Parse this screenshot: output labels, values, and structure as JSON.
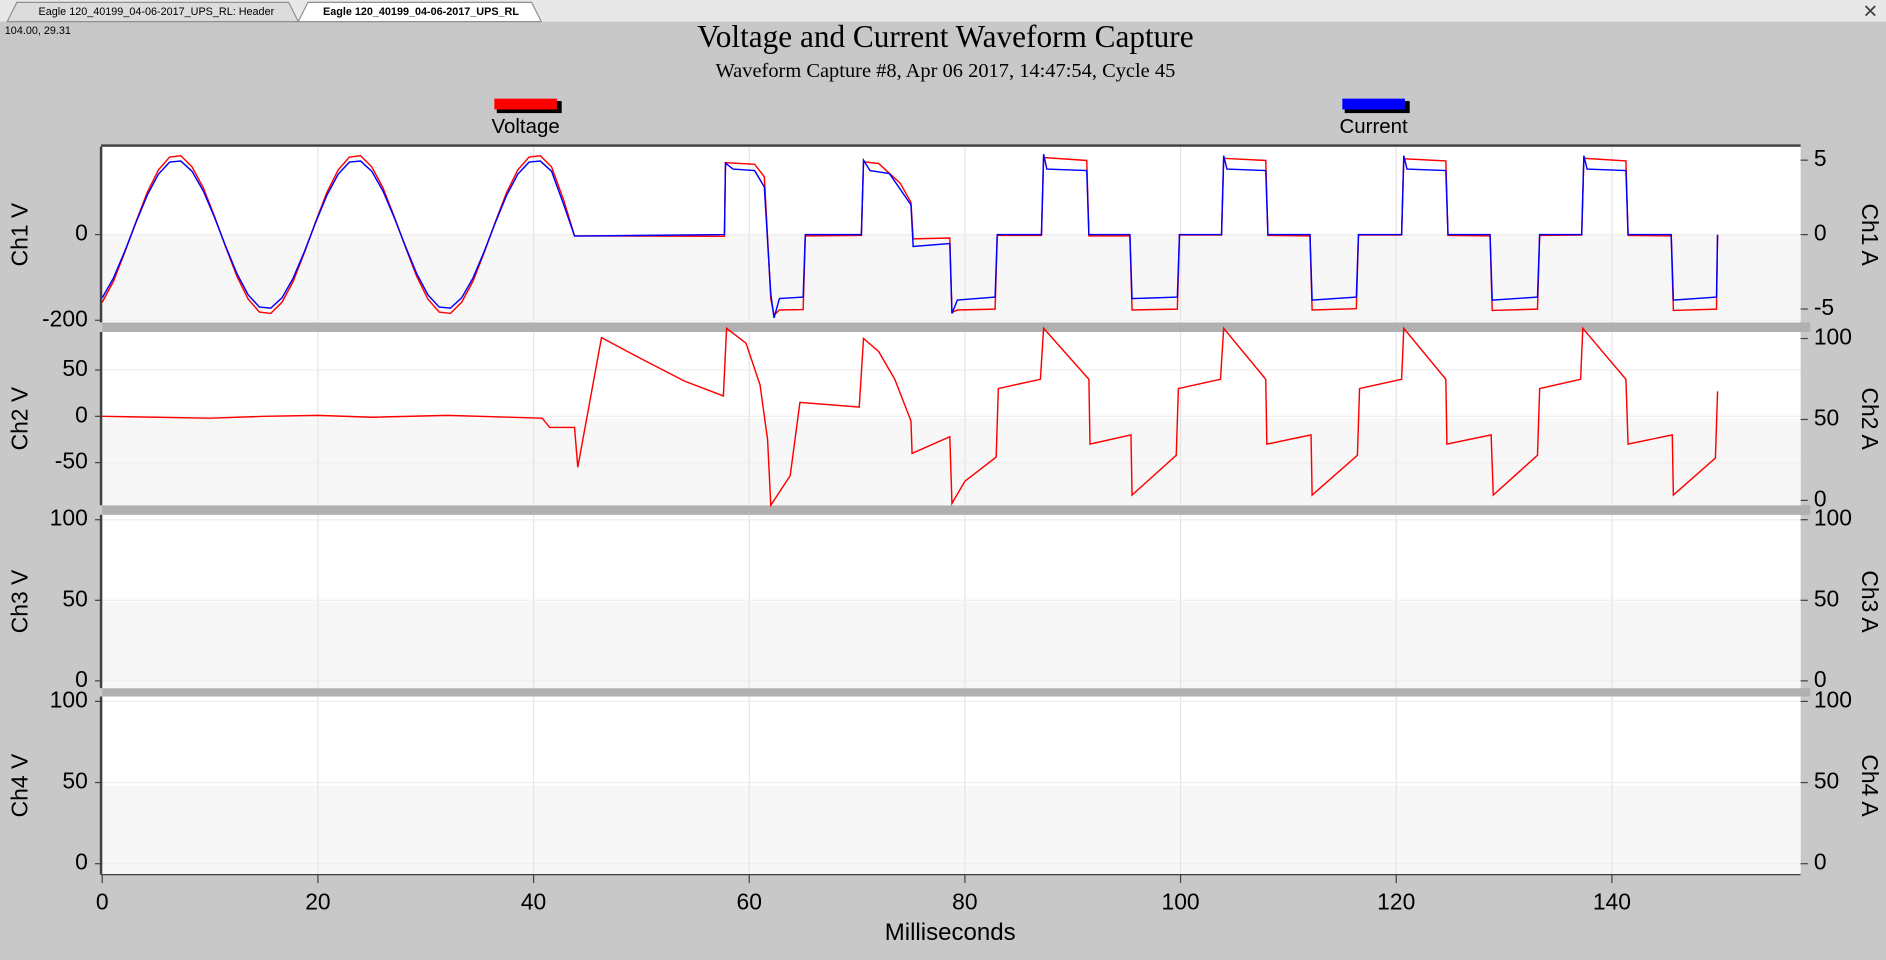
{
  "tabs": [
    "Eagle 120_40199_04-06-2017_UPS_RL: Header",
    "Eagle 120_40199_04-06-2017_UPS_RL"
  ],
  "cursor_readout": "104.00, 29.31",
  "chart_data": [
    {
      "type": "line",
      "title": "Voltage and Current Waveform Capture",
      "subtitle": "Waveform Capture #8, Apr 06 2017, 14:47:54,  Cycle 45",
      "ylabel": "Ch1 V",
      "y2label": "Ch1 A",
      "xlim": [
        0,
        157.5
      ],
      "ylim": [
        -205,
        205
      ],
      "yticks": [
        -200,
        0
      ],
      "y2lim": [
        -5.9,
        5.9
      ],
      "y2ticks": [
        -5,
        0,
        5
      ],
      "grid": true,
      "series": [
        {
          "name": "Voltage",
          "color": "#ff0000",
          "x": [
            0,
            1.04,
            2.08,
            3.13,
            4.17,
            5.21,
            6.25,
            7.29,
            8.33,
            9.38,
            10.42,
            11.46,
            12.5,
            13.54,
            14.58,
            15.63,
            16.67,
            17.71,
            18.75,
            19.79,
            20.83,
            21.88,
            22.92,
            23.96,
            25,
            26.04,
            27.08,
            28.13,
            29.17,
            30.21,
            31.25,
            32.29,
            33.33,
            34.38,
            35.42,
            36.46,
            37.5,
            38.54,
            39.58,
            40.63,
            41.67,
            42.8,
            43.8,
            57.7,
            57.8,
            60.5,
            61.4,
            62.0,
            62.3,
            62.8,
            65.0,
            65.2,
            70.4,
            70.6,
            72,
            74,
            75,
            75.2,
            78.6,
            78.8,
            79.3,
            82.8,
            83.0,
            87.1,
            87.3,
            91.3,
            91.5,
            95.3,
            95.5,
            99.7,
            99.9,
            103.8,
            104.0,
            107.9,
            108.1,
            112.0,
            112.2,
            116.3,
            116.5,
            120.5,
            120.7,
            124.6,
            124.8,
            128.7,
            128.9,
            133.1,
            133.3,
            137.2,
            137.4,
            141.3,
            141.5,
            145.5,
            145.7,
            149.7,
            149.8
          ],
          "values": [
            -158,
            -109,
            -42,
            30,
            98,
            151,
            181,
            184,
            158,
            109,
            42,
            -30,
            -98,
            -151,
            -181,
            -184,
            -158,
            -109,
            -42,
            30,
            98,
            151,
            181,
            184,
            158,
            109,
            42,
            -30,
            -98,
            -151,
            -181,
            -184,
            -158,
            -109,
            -42,
            30,
            98,
            151,
            181,
            184,
            158,
            80,
            -3,
            -4,
            168,
            164,
            135,
            -150,
            -188,
            -176,
            -175,
            -3,
            -2,
            170,
            166,
            120,
            75,
            -10,
            -8,
            -182,
            -176,
            -174,
            -2,
            -2,
            180,
            173,
            -3,
            -3,
            -176,
            -174,
            -1,
            -1,
            178,
            173,
            -2,
            -3,
            -176,
            -173,
            -1,
            -1,
            177,
            172,
            -2,
            -3,
            -177,
            -174,
            -2,
            -1,
            178,
            172,
            -2,
            -3,
            -177,
            -174,
            -1
          ]
        },
        {
          "name": "Current",
          "color": "#0000ff",
          "axis": "y2",
          "x": [
            0,
            1.04,
            2.08,
            3.13,
            4.17,
            5.21,
            6.25,
            7.29,
            8.33,
            9.38,
            10.42,
            11.46,
            12.5,
            13.54,
            14.58,
            15.63,
            16.67,
            17.71,
            18.75,
            19.79,
            20.83,
            21.88,
            22.92,
            23.96,
            25,
            26.04,
            27.08,
            28.13,
            29.17,
            30.21,
            31.25,
            32.29,
            33.33,
            34.38,
            35.42,
            36.46,
            37.5,
            38.54,
            39.58,
            40.63,
            41.67,
            42.8,
            43.8,
            57.7,
            57.8,
            58.5,
            60.5,
            61.4,
            62.0,
            62.3,
            62.8,
            65.0,
            65.2,
            70.4,
            70.6,
            71.2,
            73,
            75,
            75.2,
            78.6,
            78.8,
            79.3,
            82.8,
            83.0,
            87.1,
            87.3,
            87.6,
            91.3,
            91.5,
            95.3,
            95.5,
            99.7,
            99.9,
            103.8,
            104.0,
            104.3,
            107.9,
            108.1,
            112.0,
            112.2,
            116.3,
            116.5,
            120.5,
            120.7,
            121,
            124.6,
            124.8,
            128.7,
            128.9,
            133.1,
            133.3,
            137.2,
            137.4,
            137.7,
            141.3,
            141.5,
            145.5,
            145.7,
            149.7,
            149.8
          ],
          "values": [
            -4.25,
            -2.92,
            -1.14,
            0.81,
            2.64,
            4.06,
            4.87,
            4.94,
            4.25,
            2.92,
            1.14,
            -0.81,
            -2.64,
            -4.06,
            -4.87,
            -4.94,
            -4.25,
            -2.92,
            -1.14,
            0.81,
            2.64,
            4.06,
            4.87,
            4.94,
            4.25,
            2.92,
            1.14,
            -0.81,
            -2.64,
            -4.06,
            -4.87,
            -4.94,
            -4.25,
            -2.92,
            -1.14,
            0.81,
            2.64,
            4.06,
            4.87,
            4.94,
            4.25,
            2.0,
            -0.1,
            0,
            4.8,
            4.4,
            4.3,
            3.2,
            -4.0,
            -5.6,
            -4.3,
            -4.2,
            0,
            0,
            5.0,
            4.3,
            4.1,
            2.0,
            -0.8,
            -0.6,
            -5.3,
            -4.4,
            -4.2,
            0,
            0,
            5.4,
            4.4,
            4.3,
            0,
            0,
            -4.3,
            -4.2,
            0,
            0,
            5.3,
            4.4,
            4.3,
            0,
            0,
            -4.4,
            -4.2,
            0,
            0,
            5.3,
            4.4,
            4.3,
            0,
            0,
            -4.4,
            -4.2,
            0,
            0,
            5.3,
            4.4,
            4.3,
            0,
            0,
            -4.4,
            -4.2,
            0
          ]
        }
      ]
    },
    {
      "type": "line",
      "ylabel": "Ch2 V",
      "y2label": "Ch2 A",
      "xlim": [
        0,
        157.5
      ],
      "ylim": [
        -96,
        91
      ],
      "yticks": [
        -50,
        0,
        50
      ],
      "y2lim": [
        -3,
        104
      ],
      "y2ticks": [
        0,
        50,
        100
      ],
      "grid": true,
      "series": [
        {
          "name": "Voltage",
          "color": "#ff0000",
          "x": [
            0,
            10,
            15,
            20,
            25,
            32,
            40.8,
            41.5,
            43.8,
            44.1,
            46.3,
            50,
            54,
            57.6,
            57.9,
            59.7,
            61,
            61.7,
            62.0,
            63.8,
            64.7,
            70.2,
            70.6,
            72,
            73.5,
            75,
            75.1,
            78.6,
            78.8,
            80,
            82.9,
            83.1,
            87.0,
            87.3,
            91.5,
            91.6,
            95.4,
            95.5,
            99.6,
            99.8,
            103.7,
            104.0,
            107.9,
            108.0,
            112.1,
            112.2,
            116.4,
            116.6,
            120.5,
            120.7,
            124.6,
            124.7,
            128.8,
            129.0,
            133.1,
            133.3,
            137.1,
            137.3,
            141.3,
            141.5,
            145.6,
            145.7,
            149.6,
            149.8
          ],
          "values": [
            0,
            -2,
            0,
            1,
            -1,
            1,
            -2,
            -12,
            -12,
            -55,
            85,
            62,
            38,
            22,
            95,
            79,
            34,
            -25,
            -96,
            -64,
            15,
            10,
            84,
            70,
            40,
            -5,
            -40,
            -22,
            -94,
            -70,
            -44,
            30,
            40,
            95,
            40,
            -30,
            -20,
            -85,
            -42,
            30,
            40,
            95,
            40,
            -30,
            -20,
            -85,
            -42,
            30,
            40,
            95,
            40,
            -30,
            -20,
            -85,
            -42,
            30,
            40,
            95,
            40,
            -30,
            -20,
            -85,
            -45,
            27
          ]
        }
      ]
    },
    {
      "type": "line",
      "ylabel": "Ch3 V",
      "y2label": "Ch3 A",
      "xlim": [
        0,
        157.5
      ],
      "ylim": [
        -4.5,
        103
      ],
      "yticks": [
        0,
        50,
        100
      ],
      "y2lim": [
        -4.5,
        103
      ],
      "y2ticks": [
        0,
        50,
        100
      ],
      "grid": true,
      "series": []
    },
    {
      "type": "line",
      "ylabel": "Ch4 V",
      "y2label": "Ch4 A",
      "xlim": [
        0,
        157.5
      ],
      "ylim": [
        -6.7,
        103
      ],
      "yticks": [
        0,
        50,
        100
      ],
      "y2lim": [
        -6.7,
        103
      ],
      "y2ticks": [
        0,
        50,
        100
      ],
      "grid": true,
      "series": [],
      "xlabel": "Milliseconds",
      "xticks": [
        0,
        20,
        40,
        60,
        80,
        100,
        120,
        140
      ]
    }
  ]
}
